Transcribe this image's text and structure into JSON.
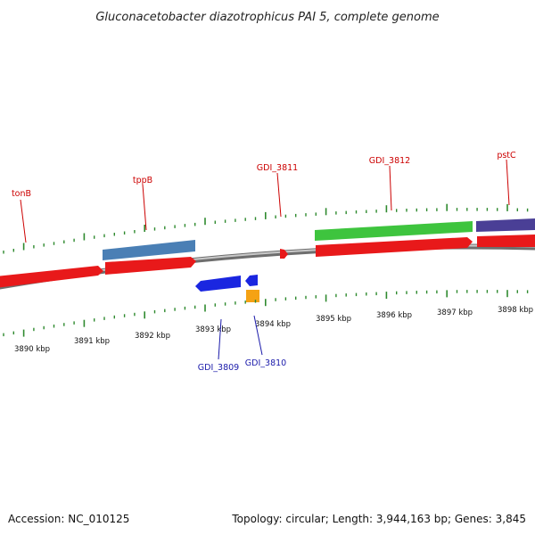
{
  "title": "Gluconacetobacter diazotrophicus PAI 5, complete genome",
  "footer": {
    "accession": "Accession: NC_010125",
    "summary": "Topology: circular; Length: 3,944,163 bp; Genes: 3,845"
  },
  "colors": {
    "backbone": "#8a8a8a",
    "tick": "#2f8a2f",
    "forward_label": "#cc0000",
    "reverse_label": "#1a1aaa",
    "red_feature": "#e8191a",
    "blue_feature": "#1a26e0",
    "steelblue_feature": "#4a7fb5",
    "green_feature": "#3ec43e",
    "purple_feature": "#4a3f96",
    "orange_feature": "#f5a214"
  },
  "scale": {
    "unit": "kbp",
    "labels": [
      "3890 kbp",
      "3891 kbp",
      "3892 kbp",
      "3893 kbp",
      "3894 kbp",
      "3895 kbp",
      "3896 kbp",
      "3897 kbp",
      "3898 kbp"
    ]
  },
  "gene_labels": {
    "forward": [
      "tonB",
      "tppB",
      "GDI_3811",
      "GDI_3812",
      "pstC"
    ],
    "reverse": [
      "GDI_3809",
      "GDI_3810"
    ]
  }
}
